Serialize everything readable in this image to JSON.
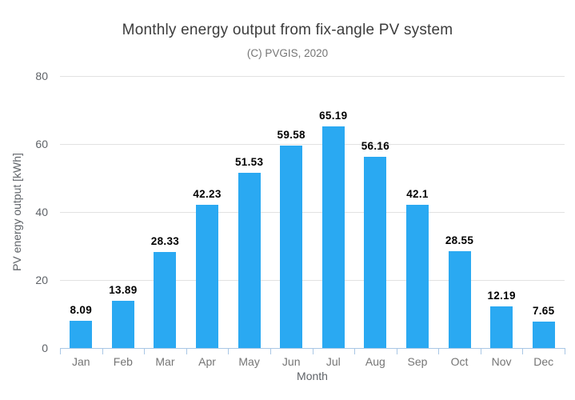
{
  "chart_data": {
    "type": "bar",
    "title": "Monthly energy output from fix-angle PV system",
    "subtitle": "(C) PVGIS, 2020",
    "xlabel": "Month",
    "ylabel": "PV energy output [kWh]",
    "categories": [
      "Jan",
      "Feb",
      "Mar",
      "Apr",
      "May",
      "Jun",
      "Jul",
      "Aug",
      "Sep",
      "Oct",
      "Nov",
      "Dec"
    ],
    "values": [
      8.09,
      13.89,
      28.33,
      42.23,
      51.53,
      59.58,
      65.19,
      56.16,
      42.1,
      28.55,
      12.19,
      7.65
    ],
    "value_labels": [
      "8.09",
      "13.89",
      "28.33",
      "42.23",
      "51.53",
      "59.58",
      "65.19",
      "56.16",
      "42.1",
      "28.55",
      "12.19",
      "7.65"
    ],
    "ylim": [
      0,
      80
    ],
    "yticks": [
      0,
      20,
      40,
      60,
      80
    ],
    "grid": true,
    "legend": "none",
    "colors": {
      "bar": "#2aa9f2",
      "gridline": "#e2e2e2",
      "axis_line": "#a9c7e5",
      "title": "#3c3c3c",
      "subtitle": "#757575",
      "tick_label": "#5f6368",
      "value_label": "#000000"
    }
  }
}
